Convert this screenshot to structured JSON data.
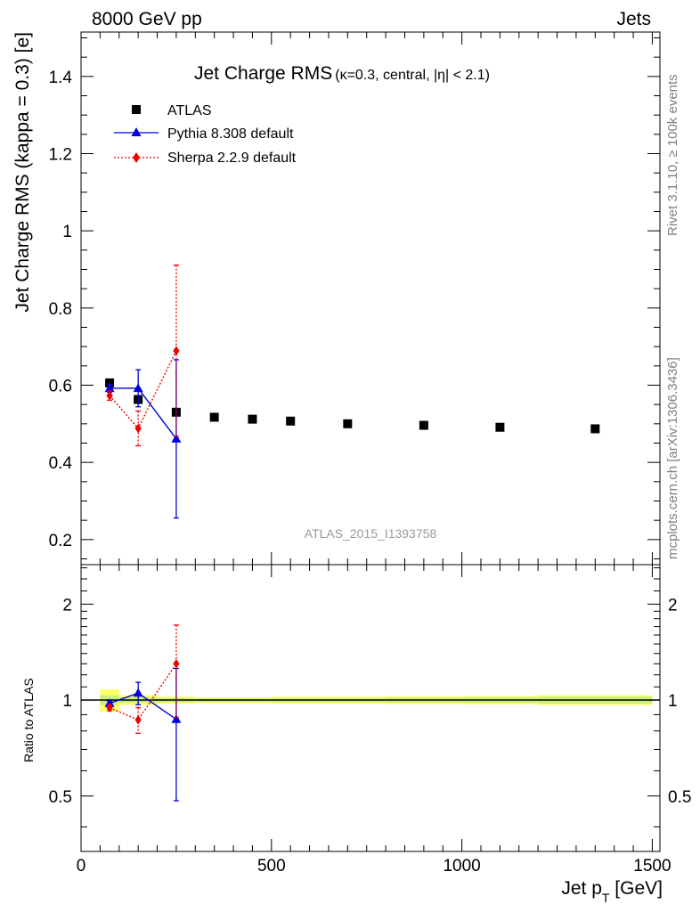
{
  "header": {
    "left": "8000 GeV pp",
    "right": "Jets"
  },
  "title": {
    "main": "Jet Charge RMS",
    "sub": "(κ=0.3, central, |η| < 2.1)"
  },
  "side_labels": {
    "rivet": "Rivet 3.1.10, ≥ 100k events",
    "ref": "mcplots.cern.ch [arXiv:1306.3436]"
  },
  "watermark": "ATLAS_2015_I1393758",
  "axes": {
    "ylabel_main": "Jet Charge RMS (kappa = 0.3) [e]",
    "ylabel_ratio": "Ratio to ATLAS",
    "xlabel_main": "Jet p",
    "xlabel_sub": "T",
    "xlabel_unit": " [GeV]"
  },
  "colors": {
    "atlas": "#000000",
    "pythia": "#0000dd",
    "sherpa": "#ee0000",
    "band_inner": "#c8f07a",
    "band_outer": "#ffff66"
  },
  "chart_data": [
    {
      "type": "scatter",
      "panel": "main",
      "xlim": [
        0,
        1520
      ],
      "ylim": [
        0.135,
        1.515
      ],
      "yticks": [
        0.2,
        0.4,
        0.6,
        0.8,
        1,
        1.2,
        1.4
      ],
      "ytick_labels": [
        "0.2",
        "0.4",
        "0.6",
        "0.8",
        "1",
        "1.2",
        "1.4"
      ],
      "grid": false,
      "legend": "top-left",
      "series": [
        {
          "name": "ATLAS",
          "marker": "square",
          "x": [
            75,
            150,
            250,
            350,
            450,
            550,
            700,
            900,
            1100,
            1350
          ],
          "y": [
            0.606,
            0.563,
            0.53,
            0.517,
            0.512,
            0.507,
            0.5,
            0.496,
            0.491,
            0.487
          ]
        },
        {
          "name": "Pythia 8.308 default",
          "marker": "triangle",
          "x": [
            75,
            150,
            250
          ],
          "y": [
            0.592,
            0.592,
            0.461
          ],
          "err": [
            0.01,
            0.048,
            0.205
          ]
        },
        {
          "name": "Sherpa 2.2.9 default",
          "marker": "diamond",
          "x": [
            75,
            150,
            250
          ],
          "y": [
            0.573,
            0.488,
            0.689
          ],
          "err": [
            0.012,
            0.045,
            0.222
          ]
        }
      ]
    },
    {
      "type": "scatter",
      "panel": "ratio",
      "xlim": [
        0,
        1520
      ],
      "ylim": [
        0.335,
        2.66
      ],
      "log_y": true,
      "yticks": [
        0.5,
        1,
        2
      ],
      "ytick_labels": [
        "0.5",
        "1",
        "2"
      ],
      "xticks": [
        0,
        500,
        1000,
        1500
      ],
      "xtick_labels": [
        "0",
        "500",
        "1000",
        "1500"
      ],
      "reference_line": 1,
      "band": {
        "x": [
          50,
          100,
          200,
          300,
          400,
          500,
          600,
          800,
          1000,
          1200,
          1500
        ],
        "inner": [
          0.035,
          0.02,
          0.015,
          0.012,
          0.012,
          0.015,
          0.015,
          0.018,
          0.02,
          0.025
        ],
        "outer": [
          0.08,
          0.035,
          0.025,
          0.02,
          0.02,
          0.025,
          0.025,
          0.028,
          0.03,
          0.035
        ]
      },
      "series": [
        {
          "name": "Pythia 8.308 default",
          "x": [
            75,
            150,
            250
          ],
          "y": [
            0.977,
            1.052,
            0.87
          ],
          "err": [
            0.016,
            0.085,
            0.387
          ]
        },
        {
          "name": "Sherpa 2.2.9 default",
          "x": [
            75,
            150,
            250
          ],
          "y": [
            0.946,
            0.867,
            1.3
          ],
          "err": [
            0.02,
            0.08,
            0.419
          ]
        }
      ]
    }
  ]
}
